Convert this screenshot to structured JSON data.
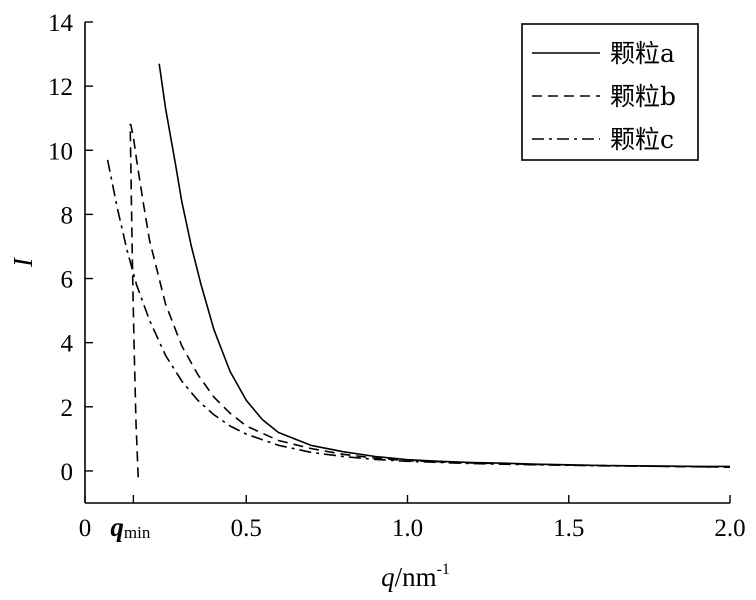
{
  "chart_data": {
    "type": "line",
    "title": "",
    "xlabel": {
      "var": "q",
      "unit": "/nm",
      "sup": "-1"
    },
    "ylabel": "I",
    "xlim": [
      0,
      2.0
    ],
    "ylim": [
      -1,
      14
    ],
    "x_ticks": [
      {
        "value": 0,
        "label": "0"
      },
      {
        "value": 0.5,
        "label": "0.5"
      },
      {
        "value": 1.0,
        "label": "1.0"
      },
      {
        "value": 1.5,
        "label": "1.5"
      },
      {
        "value": 2.0,
        "label": "2.0"
      }
    ],
    "y_ticks": [
      {
        "value": 0,
        "label": "0"
      },
      {
        "value": 2,
        "label": "2"
      },
      {
        "value": 4,
        "label": "4"
      },
      {
        "value": 6,
        "label": "6"
      },
      {
        "value": 8,
        "label": "8"
      },
      {
        "value": 10,
        "label": "10"
      },
      {
        "value": 12,
        "label": "12"
      },
      {
        "value": 14,
        "label": "14"
      }
    ],
    "qmin_annotation": {
      "base": "q",
      "sub": "min",
      "x": 0.15
    },
    "legend_position": "top-right",
    "grid": false,
    "series": [
      {
        "name": "颗粒a",
        "dash": "solid",
        "x": [
          0.23,
          0.25,
          0.28,
          0.3,
          0.33,
          0.36,
          0.4,
          0.45,
          0.5,
          0.55,
          0.6,
          0.7,
          0.8,
          0.9,
          1.0,
          1.1,
          1.2,
          1.3,
          1.4,
          1.5,
          1.6,
          1.7,
          1.8,
          1.9,
          2.0
        ],
        "y": [
          12.7,
          11.3,
          9.6,
          8.4,
          7.0,
          5.8,
          4.4,
          3.1,
          2.2,
          1.6,
          1.2,
          0.8,
          0.6,
          0.45,
          0.35,
          0.3,
          0.26,
          0.24,
          0.21,
          0.19,
          0.17,
          0.16,
          0.15,
          0.14,
          0.14
        ]
      },
      {
        "name": "颗粒b",
        "dash": "dashed",
        "x": [
          0.165,
          0.158,
          0.152,
          0.147,
          0.143,
          0.14,
          0.142,
          0.15,
          0.16,
          0.18,
          0.2,
          0.25,
          0.3,
          0.35,
          0.4,
          0.45,
          0.5,
          0.6,
          0.7,
          0.8,
          0.9,
          1.0,
          1.2,
          1.4,
          1.6,
          1.8,
          2.0
        ],
        "y": [
          -0.2,
          1.5,
          4.0,
          6.5,
          9.0,
          10.8,
          10.8,
          10.4,
          9.7,
          8.4,
          7.2,
          5.2,
          3.9,
          3.0,
          2.3,
          1.8,
          1.4,
          0.95,
          0.7,
          0.52,
          0.4,
          0.32,
          0.25,
          0.2,
          0.17,
          0.14,
          0.12
        ]
      },
      {
        "name": "颗粒c",
        "dash": "dash-dot",
        "x": [
          0.07,
          0.1,
          0.13,
          0.16,
          0.2,
          0.25,
          0.3,
          0.35,
          0.4,
          0.45,
          0.5,
          0.6,
          0.7,
          0.8,
          0.9,
          1.0,
          1.2,
          1.4,
          1.6,
          1.8,
          2.0
        ],
        "y": [
          9.7,
          8.2,
          6.9,
          5.8,
          4.7,
          3.6,
          2.8,
          2.2,
          1.75,
          1.4,
          1.15,
          0.8,
          0.58,
          0.45,
          0.36,
          0.3,
          0.23,
          0.19,
          0.16,
          0.14,
          0.12
        ]
      }
    ]
  }
}
